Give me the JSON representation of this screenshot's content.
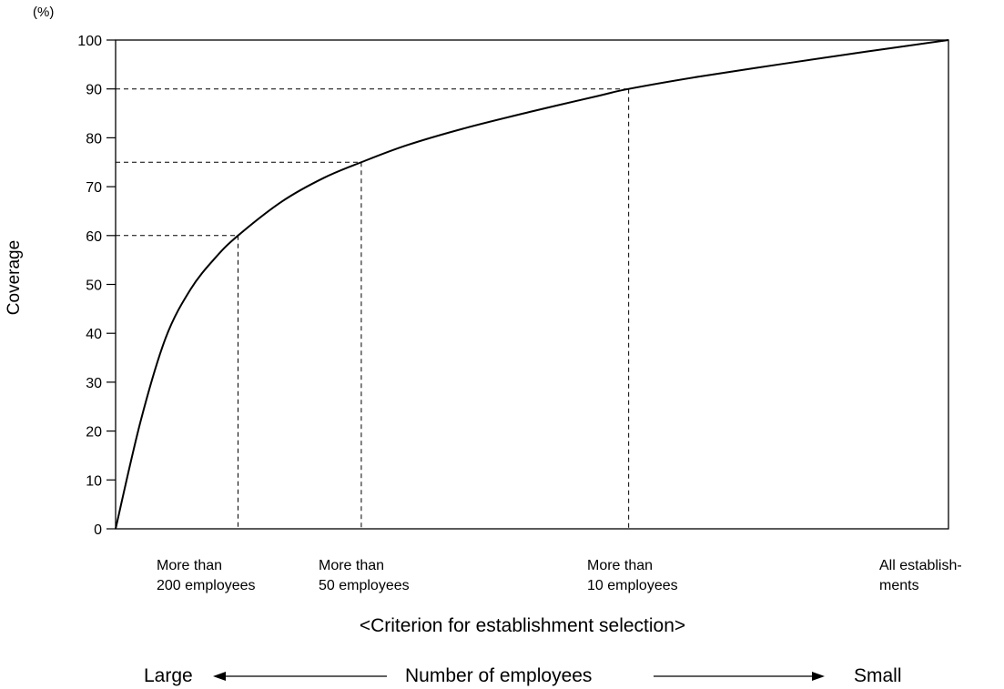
{
  "chart_data": {
    "type": "line",
    "y_unit": "(%)",
    "ylabel": "Coverage",
    "ylim": [
      0,
      100
    ],
    "y_ticks": [
      "0",
      "10",
      "20",
      "30",
      "40",
      "50",
      "60",
      "70",
      "80",
      "90",
      "100"
    ],
    "x_range": [
      0,
      1
    ],
    "series": [
      {
        "x": [
          0,
          0.03,
          0.06,
          0.09,
          0.12,
          0.147,
          0.2,
          0.25,
          0.295,
          0.35,
          0.42,
          0.5,
          0.58,
          0.616,
          0.7,
          0.8,
          0.9,
          1.0
        ],
        "values": [
          0,
          22,
          39,
          49,
          55.5,
          60,
          67,
          71.8,
          75,
          78.5,
          82,
          85.4,
          88.6,
          90,
          92.5,
          95.1,
          97.6,
          100
        ]
      }
    ],
    "reference_points": [
      {
        "x": 0.147,
        "y": 60
      },
      {
        "x": 0.295,
        "y": 75
      },
      {
        "x": 0.616,
        "y": 90
      }
    ],
    "criteria": [
      {
        "line1": "More than",
        "line2": "200 employees"
      },
      {
        "line1": "More than",
        "line2": "50 employees"
      },
      {
        "line1": "More than",
        "line2": "10 employees"
      },
      {
        "line1": "All establish-",
        "line2": "ments"
      }
    ],
    "grid": false
  },
  "xlabel": "<Criterion for establishment selection>",
  "scale": {
    "left": "Large",
    "middle": "Number of employees",
    "right": "Small"
  }
}
